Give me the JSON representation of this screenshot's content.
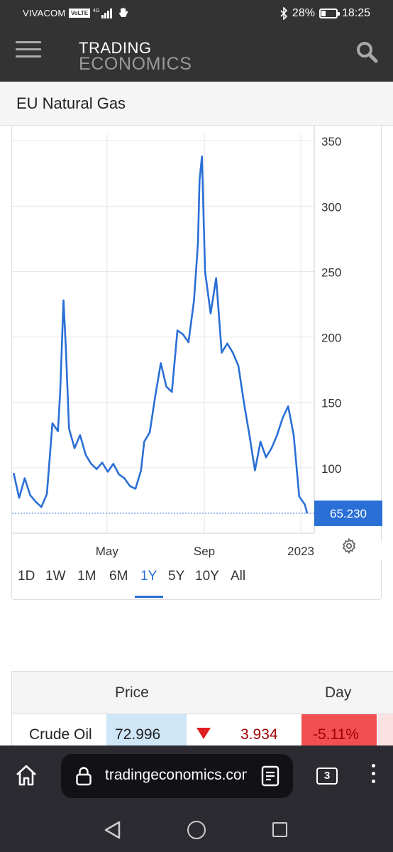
{
  "status_bar": {
    "carrier": "VIVACOM",
    "volte": "VoLTE",
    "network": "4G",
    "battery": "28%",
    "battery_level": 0.28,
    "time": "18:25"
  },
  "header": {
    "logo_line1": "TRADING",
    "logo_line2": "ECONOMICS",
    "menu_icon": "hamburger-icon",
    "search_icon": "search-icon"
  },
  "page": {
    "title": "EU Natural Gas"
  },
  "chart_data": {
    "type": "line",
    "title": "",
    "xlabel": "",
    "ylabel": "",
    "x_ticks": [
      "May",
      "Sep",
      "2023"
    ],
    "y_ticks": [
      100,
      150,
      200,
      250,
      300,
      350
    ],
    "ylim": [
      50,
      355
    ],
    "grid": true,
    "line_color": "#2a6fd6",
    "last_value_label": "65.230",
    "last_value": 65.23,
    "series": [
      {
        "x": [
          "2022-01-03",
          "2022-01-10",
          "2022-01-17",
          "2022-01-24",
          "2022-01-31",
          "2022-02-07",
          "2022-02-14",
          "2022-02-21",
          "2022-02-28",
          "2022-03-03",
          "2022-03-07",
          "2022-03-10",
          "2022-03-14",
          "2022-03-21",
          "2022-03-28",
          "2022-04-04",
          "2022-04-11",
          "2022-04-18",
          "2022-04-25",
          "2022-05-02",
          "2022-05-09",
          "2022-05-16",
          "2022-05-23",
          "2022-05-30",
          "2022-06-06",
          "2022-06-13",
          "2022-06-17",
          "2022-06-24",
          "2022-07-01",
          "2022-07-08",
          "2022-07-15",
          "2022-07-22",
          "2022-07-29",
          "2022-08-05",
          "2022-08-12",
          "2022-08-19",
          "2022-08-24",
          "2022-08-26",
          "2022-08-29",
          "2022-09-02",
          "2022-09-09",
          "2022-09-16",
          "2022-09-23",
          "2022-09-30",
          "2022-10-07",
          "2022-10-14",
          "2022-10-21",
          "2022-10-28",
          "2022-11-04",
          "2022-11-11",
          "2022-11-18",
          "2022-11-25",
          "2022-12-02",
          "2022-12-09",
          "2022-12-16",
          "2022-12-23",
          "2022-12-30",
          "2023-01-06",
          "2023-01-09"
        ],
        "values": [
          96,
          77,
          92,
          79,
          74,
          70,
          80,
          134,
          128,
          160,
          228,
          192,
          130,
          115,
          125,
          110,
          103,
          99,
          104,
          97,
          103,
          95,
          92,
          86,
          84,
          98,
          120,
          127,
          155,
          180,
          162,
          158,
          205,
          202,
          196,
          228,
          272,
          320,
          338,
          250,
          218,
          245,
          188,
          195,
          188,
          178,
          150,
          125,
          98,
          120,
          108,
          115,
          125,
          138,
          147,
          125,
          78,
          72,
          65.23
        ]
      }
    ]
  },
  "range_buttons": [
    "1D",
    "1W",
    "1M",
    "6M",
    "1Y",
    "5Y",
    "10Y",
    "All"
  ],
  "range_active": "1Y",
  "settings_icon": "gear-icon",
  "table": {
    "headers": [
      "Price",
      "Day"
    ],
    "rows": [
      {
        "name": "Crude Oil",
        "price": "72.996",
        "direction": "down",
        "change": "3.934",
        "percent": "-5.11%"
      }
    ],
    "colors": {
      "price_bg": "#cfe6f7",
      "percent_bg": "#f05050",
      "down": "#e02020",
      "change_text": "#a00000"
    }
  },
  "browser": {
    "url": "tradingeconomics.com",
    "tabs_count": "3"
  }
}
